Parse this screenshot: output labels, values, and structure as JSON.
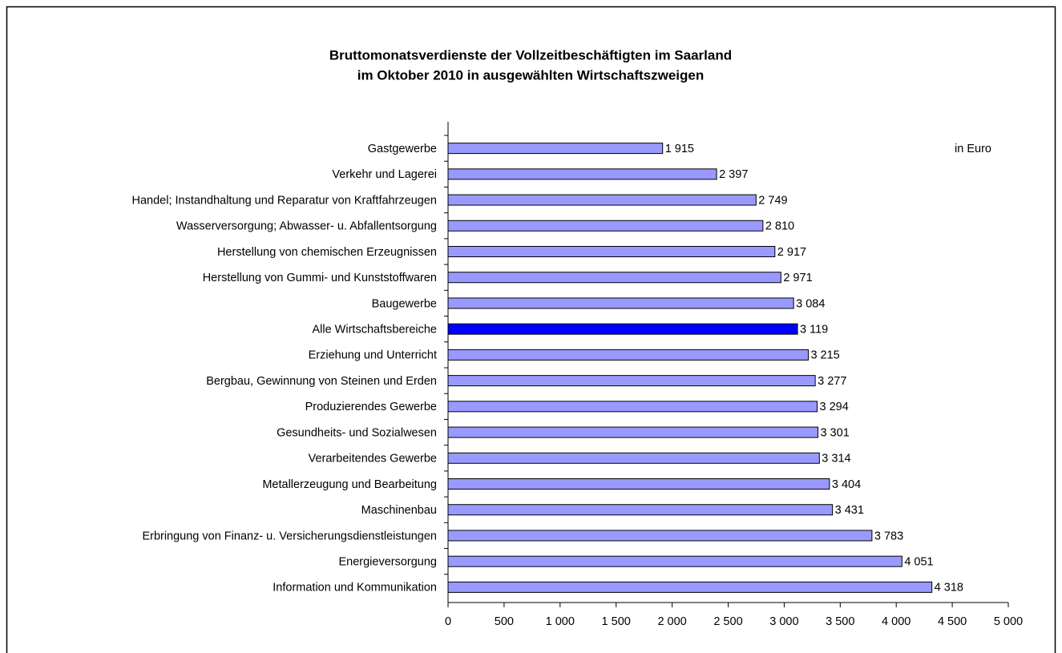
{
  "chart_data": {
    "type": "barh",
    "title": [
      "Bruttomonatsverdienste der Vollzeitbeschäftigten im Saarland",
      "im Oktober 2010 in ausgewählten Wirtschaftszweigen"
    ],
    "annotation": "in Euro",
    "categories": [
      "Gastgewerbe",
      "Verkehr und Lagerei",
      "Handel; Instandhaltung und Reparatur von Kraftfahrzeugen",
      "Wasserversorgung; Abwasser- u. Abfallentsorgung",
      "Herstellung von chemischen Erzeugnissen",
      "Herstellung von Gummi- und Kunststoffwaren",
      "Baugewerbe",
      "Alle Wirtschaftsbereiche",
      "Erziehung und Unterricht",
      "Bergbau, Gewinnung von Steinen und Erden",
      "Produzierendes Gewerbe",
      "Gesundheits- und Sozialwesen",
      "Verarbeitendes Gewerbe",
      "Metallerzeugung und Bearbeitung",
      "Maschinenbau",
      "Erbringung von Finanz- u. Versicherungsdienstleistungen",
      "Energieversorgung",
      "Information und Kommunikation"
    ],
    "values": [
      1915,
      2397,
      2749,
      2810,
      2917,
      2971,
      3084,
      3119,
      3215,
      3277,
      3294,
      3301,
      3314,
      3404,
      3431,
      3783,
      4051,
      4318
    ],
    "value_labels": [
      "1 915",
      "2 397",
      "2 749",
      "2 810",
      "2 917",
      "2 971",
      "3 084",
      "3 119",
      "3 215",
      "3 277",
      "3 294",
      "3 301",
      "3 314",
      "3 404",
      "3 431",
      "3 783",
      "4 051",
      "4 318"
    ],
    "colors": [
      "#9999ff",
      "#9999ff",
      "#9999ff",
      "#9999ff",
      "#9999ff",
      "#9999ff",
      "#9999ff",
      "#0000ff",
      "#9999ff",
      "#9999ff",
      "#9999ff",
      "#9999ff",
      "#9999ff",
      "#9999ff",
      "#9999ff",
      "#9999ff",
      "#9999ff",
      "#9999ff"
    ],
    "xlim": [
      0,
      5000
    ],
    "xticks": [
      0,
      500,
      {
        "value": 1000,
        "label": "1 000"
      },
      {
        "value": 1500,
        "label": "1 500"
      },
      {
        "value": 2000,
        "label": "2 000"
      },
      {
        "value": 2500,
        "label": "2 500"
      },
      {
        "value": 3000,
        "label": "3 000"
      },
      {
        "value": 3500,
        "label": "3 500"
      },
      {
        "value": 4000,
        "label": "4 000"
      },
      {
        "value": 4500,
        "label": "4 500"
      },
      {
        "value": 5000,
        "label": "5 000"
      }
    ],
    "grid": false
  }
}
